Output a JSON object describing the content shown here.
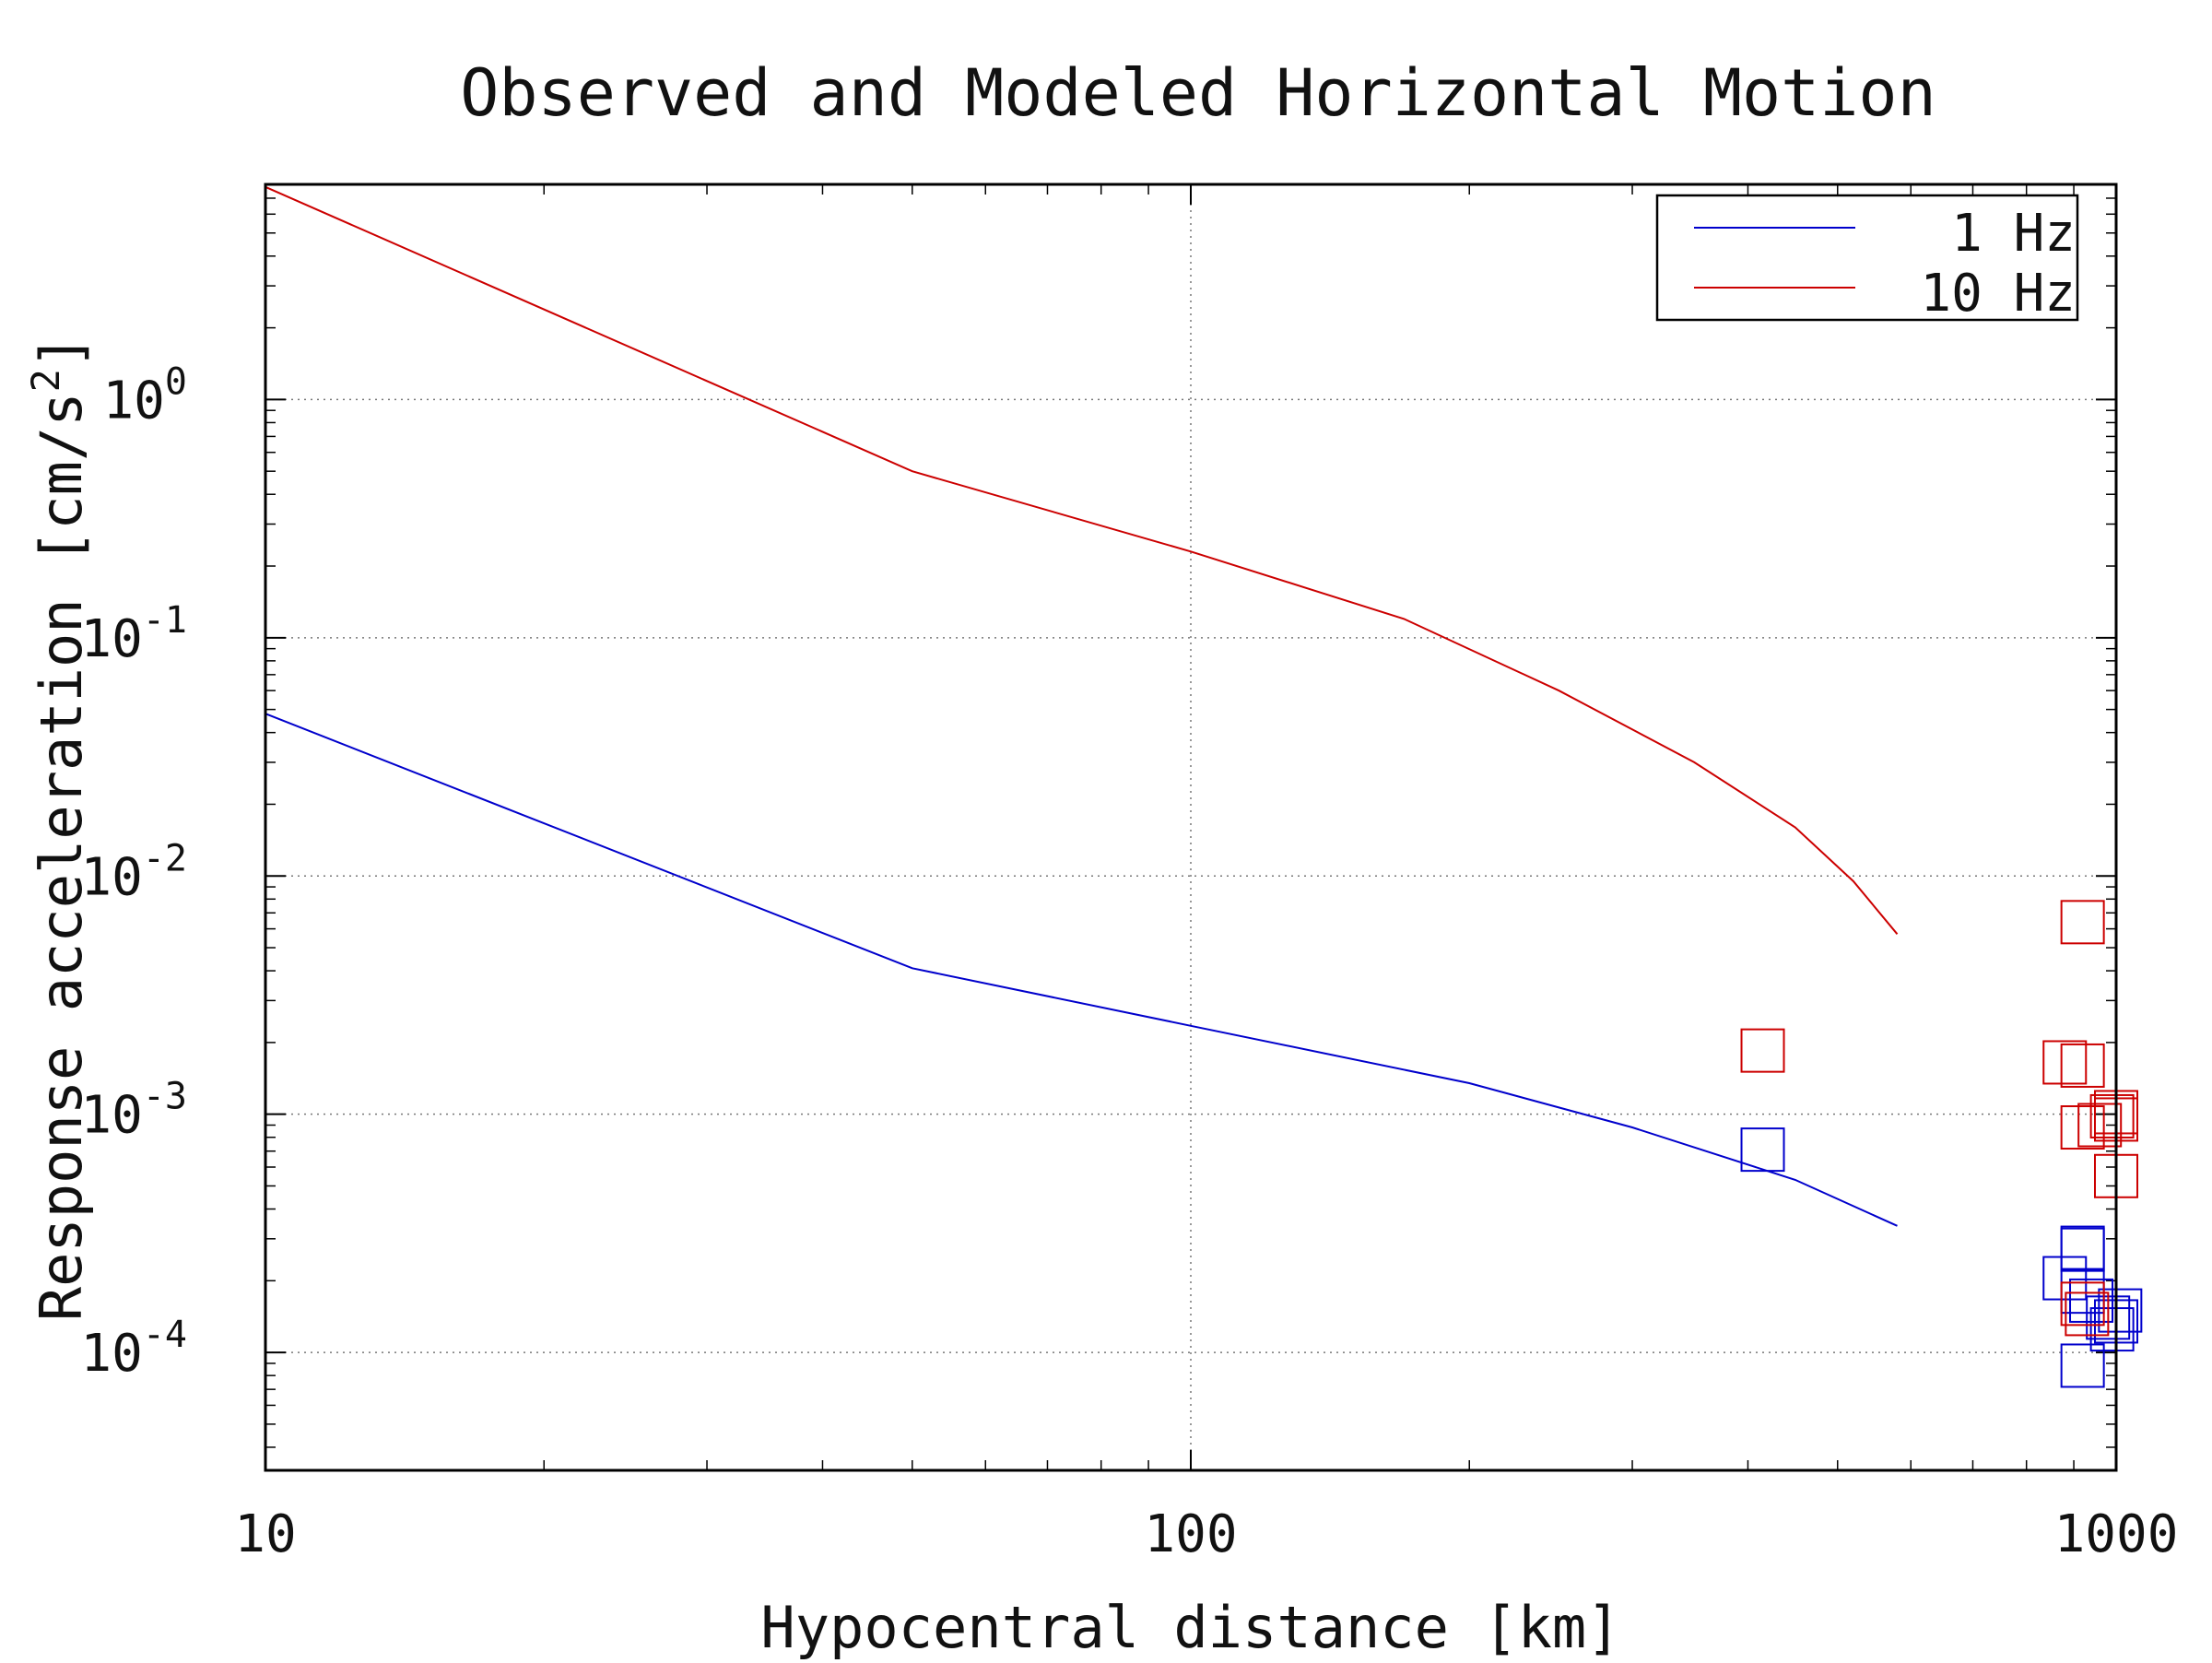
{
  "chart_data": {
    "type": "line",
    "title": "Observed and Modeled Horizontal Motion",
    "xlabel": "Hypocentral distance [km]",
    "ylabel": "Response acceleration [cm/s",
    "ylabel_sup": "2",
    "ylabel_end": "]",
    "x_scale": "log",
    "y_scale": "log",
    "xlim": [
      10,
      1000
    ],
    "ylim": [
      3.2e-05,
      8.0
    ],
    "x_ticks": [
      {
        "value": 10,
        "label": "10"
      },
      {
        "value": 100,
        "label": "100"
      },
      {
        "value": 1000,
        "label": "1000"
      }
    ],
    "y_ticks": [
      {
        "value": 1,
        "base": "10",
        "exp": "0"
      },
      {
        "value": 0.1,
        "base": "10",
        "exp": "-1"
      },
      {
        "value": 0.01,
        "base": "10",
        "exp": "-2"
      },
      {
        "value": 0.001,
        "base": "10",
        "exp": "-3"
      },
      {
        "value": 0.0001,
        "base": "10",
        "exp": "-4"
      }
    ],
    "grid": "dotted",
    "legend_position": "top-right",
    "series": [
      {
        "name": "1 Hz",
        "color": "#0000cc",
        "points": [
          {
            "x": 10,
            "y": 0.048
          },
          {
            "x": 50,
            "y": 0.0041
          },
          {
            "x": 100,
            "y": 0.00235
          },
          {
            "x": 200,
            "y": 0.00135
          },
          {
            "x": 300,
            "y": 0.00088
          },
          {
            "x": 450,
            "y": 0.00053
          },
          {
            "x": 580,
            "y": 0.00034
          }
        ],
        "observed": [
          {
            "x": 415,
            "y": 0.00071
          },
          {
            "x": 880,
            "y": 0.000205
          },
          {
            "x": 920,
            "y": 0.00027
          },
          {
            "x": 920,
            "y": 0.000275
          },
          {
            "x": 920,
            "y": 0.00018
          },
          {
            "x": 940,
            "y": 0.000165
          },
          {
            "x": 990,
            "y": 0.000125
          },
          {
            "x": 1000,
            "y": 0.000135
          },
          {
            "x": 1010,
            "y": 0.00015
          },
          {
            "x": 980,
            "y": 0.00014
          },
          {
            "x": 920,
            "y": 8.8e-05
          }
        ]
      },
      {
        "name": "10 Hz",
        "color": "#cc0000",
        "points": [
          {
            "x": 10,
            "y": 7.8
          },
          {
            "x": 50,
            "y": 0.5
          },
          {
            "x": 100,
            "y": 0.23
          },
          {
            "x": 170,
            "y": 0.12
          },
          {
            "x": 250,
            "y": 0.06
          },
          {
            "x": 350,
            "y": 0.03
          },
          {
            "x": 450,
            "y": 0.016
          },
          {
            "x": 520,
            "y": 0.0095
          },
          {
            "x": 580,
            "y": 0.0057
          }
        ],
        "observed": [
          {
            "x": 415,
            "y": 0.00185
          },
          {
            "x": 920,
            "y": 0.0064
          },
          {
            "x": 880,
            "y": 0.00165
          },
          {
            "x": 920,
            "y": 0.0016
          },
          {
            "x": 920,
            "y": 0.00088
          },
          {
            "x": 960,
            "y": 0.0009
          },
          {
            "x": 990,
            "y": 0.00098
          },
          {
            "x": 1000,
            "y": 0.00102
          },
          {
            "x": 1000,
            "y": 0.00095
          },
          {
            "x": 1000,
            "y": 0.00055
          },
          {
            "x": 920,
            "y": 0.00016
          },
          {
            "x": 930,
            "y": 0.000145
          }
        ]
      }
    ]
  }
}
